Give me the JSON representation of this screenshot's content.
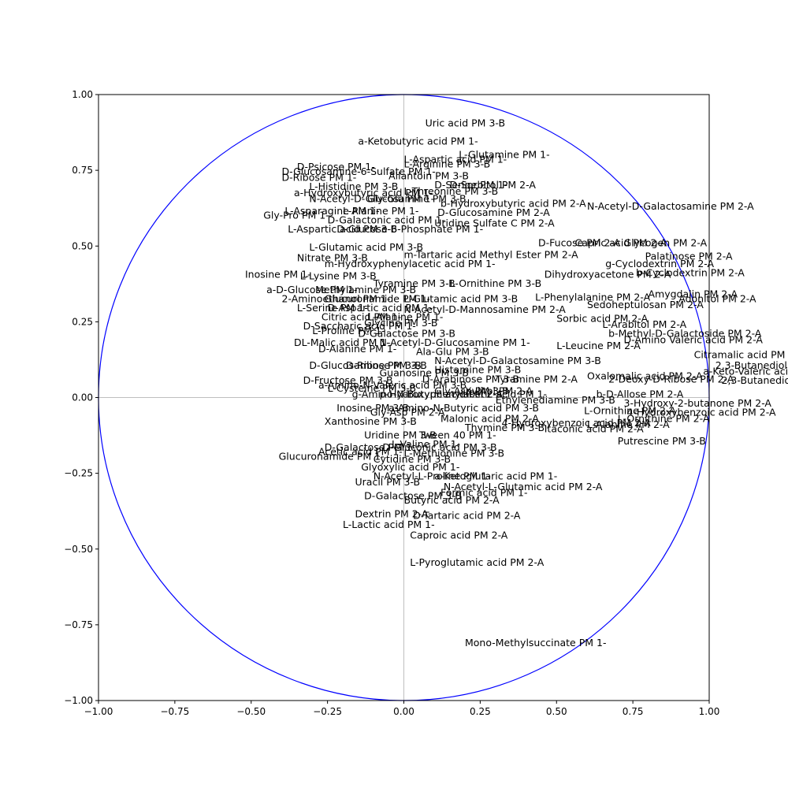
{
  "chart_data": {
    "type": "scatter",
    "title": "",
    "xlabel": "",
    "ylabel": "",
    "xlim": [
      -1.0,
      1.0
    ],
    "ylim": [
      -1.0,
      1.0
    ],
    "grid": false,
    "unit_circle": true,
    "zero_lines": true,
    "colors": {
      "circle": "#0000ff",
      "zero_lines": "#bfbfbf",
      "text": "#000000"
    },
    "x_ticks": [
      {
        "value": -1.0,
        "label": "−1.00"
      },
      {
        "value": -0.75,
        "label": "−0.75"
      },
      {
        "value": -0.5,
        "label": "−0.50"
      },
      {
        "value": -0.25,
        "label": "−0.25"
      },
      {
        "value": 0.0,
        "label": "0.00"
      },
      {
        "value": 0.25,
        "label": "0.25"
      },
      {
        "value": 0.5,
        "label": "0.50"
      },
      {
        "value": 0.75,
        "label": "0.75"
      },
      {
        "value": 1.0,
        "label": "1.00"
      }
    ],
    "y_ticks": [
      {
        "value": -1.0,
        "label": "−1.00"
      },
      {
        "value": -0.75,
        "label": "−0.75"
      },
      {
        "value": -0.5,
        "label": "−0.50"
      },
      {
        "value": -0.25,
        "label": "−0.25"
      },
      {
        "value": 0.0,
        "label": "0.00"
      },
      {
        "value": 0.25,
        "label": "0.25"
      },
      {
        "value": 0.5,
        "label": "0.50"
      },
      {
        "value": 0.75,
        "label": "0.75"
      },
      {
        "value": 1.0,
        "label": "1.00"
      }
    ],
    "points": [
      {
        "label": "Uric acid PM 3-B",
        "x": 0.07,
        "y": 0.895
      },
      {
        "label": "a-Ketobutyric acid PM 1-",
        "x": -0.15,
        "y": 0.835
      },
      {
        "label": "L-Glutamine PM 1-",
        "x": 0.18,
        "y": 0.79
      },
      {
        "label": "L-Aspartic acid PM 1-",
        "x": 0.0,
        "y": 0.775
      },
      {
        "label": "L-Arginine PM 3-B",
        "x": 0.0,
        "y": 0.76
      },
      {
        "label": "D-Psicose PM 1-",
        "x": -0.35,
        "y": 0.75
      },
      {
        "label": "D-Glucosamine-6-Sulfate PM 1-",
        "x": -0.4,
        "y": 0.735
      },
      {
        "label": "Allantoin PM 3-B",
        "x": -0.05,
        "y": 0.72
      },
      {
        "label": "D-Ribose PM 1-",
        "x": -0.4,
        "y": 0.715
      },
      {
        "label": "L-Histidine PM 3-B",
        "x": -0.31,
        "y": 0.685
      },
      {
        "label": "D-Serine PM 1-",
        "x": 0.1,
        "y": 0.69
      },
      {
        "label": "D-Sorbitol PM 2-A",
        "x": 0.15,
        "y": 0.69
      },
      {
        "label": "L-Threonine PM 3-B",
        "x": 0.0,
        "y": 0.67
      },
      {
        "label": "a-Hydroxybutyric acid PM 1-",
        "x": -0.36,
        "y": 0.665
      },
      {
        "label": "N-Acetyl-D-Glucosamine PM 3-B",
        "x": -0.31,
        "y": 0.645
      },
      {
        "label": "Gly-Glu PM 1-",
        "x": -0.12,
        "y": 0.645
      },
      {
        "label": "b-Hydroxybutyric acid PM 2-A",
        "x": 0.12,
        "y": 0.63
      },
      {
        "label": "N-Acetyl-D-Galactosamine PM 2-A",
        "x": 0.6,
        "y": 0.62
      },
      {
        "label": "L-Asparagine PM 1-",
        "x": -0.39,
        "y": 0.605
      },
      {
        "label": "Gly-Pro PM 1-",
        "x": -0.46,
        "y": 0.59
      },
      {
        "label": "L-Alanine PM 1-",
        "x": -0.2,
        "y": 0.605
      },
      {
        "label": "D-Glucosamine PM 2-A",
        "x": 0.11,
        "y": 0.6
      },
      {
        "label": "D-Galactonic acid PM 1-",
        "x": -0.25,
        "y": 0.575
      },
      {
        "label": "Uridine Sulfate C PM 2-A",
        "x": 0.1,
        "y": 0.565
      },
      {
        "label": "L-Aspartic acid PM 3-B",
        "x": -0.38,
        "y": 0.545
      },
      {
        "label": "D-Glucose-6-Phosphate PM 1-",
        "x": -0.22,
        "y": 0.545
      },
      {
        "label": "D-Fucose PM 2-A",
        "x": 0.44,
        "y": 0.5
      },
      {
        "label": "Capric acid PM 2-A",
        "x": 0.56,
        "y": 0.5
      },
      {
        "label": "Glycogen PM 2-A",
        "x": 0.72,
        "y": 0.5
      },
      {
        "label": "L-Glutamic acid PM 3-B",
        "x": -0.31,
        "y": 0.485
      },
      {
        "label": "m-Tartaric acid Methyl Ester PM 2-A",
        "x": 0.0,
        "y": 0.46
      },
      {
        "label": "Nitrate PM 3-B",
        "x": -0.35,
        "y": 0.45
      },
      {
        "label": "m-Hydroxyphenylacetic acid PM 1-",
        "x": -0.26,
        "y": 0.43
      },
      {
        "label": "Palatinose PM 2-A",
        "x": 0.79,
        "y": 0.455
      },
      {
        "label": "g-Cyclodextrin PM 2-A",
        "x": 0.66,
        "y": 0.43
      },
      {
        "label": "Inosine PM 1-",
        "x": -0.52,
        "y": 0.395
      },
      {
        "label": "L-Lysine PM 3-B",
        "x": -0.34,
        "y": 0.39
      },
      {
        "label": "Dihydroxyacetone PM 2-A",
        "x": 0.46,
        "y": 0.395
      },
      {
        "label": "b-Cyclodextrin PM 2-A",
        "x": 0.76,
        "y": 0.4
      },
      {
        "label": "Tyramine PM 3-B",
        "x": -0.1,
        "y": 0.365
      },
      {
        "label": "L-Ornithine PM 3-B",
        "x": 0.15,
        "y": 0.365
      },
      {
        "label": "a-D-Glucose PM 1-",
        "x": -0.45,
        "y": 0.345
      },
      {
        "label": "Methylamine PM 3-B",
        "x": -0.29,
        "y": 0.345
      },
      {
        "label": "2-Aminoethanol PM 1-",
        "x": -0.4,
        "y": 0.315
      },
      {
        "label": "Glucuronamide PM 1-",
        "x": -0.26,
        "y": 0.315
      },
      {
        "label": "L-Glutamic acid PM 3-B",
        "x": 0.0,
        "y": 0.315
      },
      {
        "label": "L-Phenylalanine PM 2-A",
        "x": 0.43,
        "y": 0.32
      },
      {
        "label": "Amygdalin PM 2-A",
        "x": 0.8,
        "y": 0.33
      },
      {
        "label": "Adonitol PM 2-A",
        "x": 0.9,
        "y": 0.315
      },
      {
        "label": "L-Serine PM 1-",
        "x": -0.35,
        "y": 0.285
      },
      {
        "label": "D-Aspartic acid PM 1-",
        "x": -0.25,
        "y": 0.285
      },
      {
        "label": "N-Acetyl-D-Mannosamine PM 2-A",
        "x": 0.0,
        "y": 0.28
      },
      {
        "label": "Sedoheptulosan PM 2-A",
        "x": 0.6,
        "y": 0.295
      },
      {
        "label": "Citric acid PM 1-",
        "x": -0.27,
        "y": 0.255
      },
      {
        "label": "L-Alanine PM 1-",
        "x": -0.12,
        "y": 0.255
      },
      {
        "label": "Sorbic acid PM 2-A",
        "x": 0.5,
        "y": 0.25
      },
      {
        "label": "L-Arabitol PM 2-A",
        "x": 0.65,
        "y": 0.23
      },
      {
        "label": "D-Saccharic acid PM 1-",
        "x": -0.33,
        "y": 0.225
      },
      {
        "label": "Glycine PM 3-B",
        "x": -0.13,
        "y": 0.235
      },
      {
        "label": "L-Proline PM 1-",
        "x": -0.3,
        "y": 0.21
      },
      {
        "label": "D-Galactose PM 3-B",
        "x": -0.15,
        "y": 0.2
      },
      {
        "label": "b-Methyl-D-Galactoside PM 2-A",
        "x": 0.67,
        "y": 0.2
      },
      {
        "label": "D-Amino Valeric acid PM 2-A",
        "x": 0.72,
        "y": 0.18
      },
      {
        "label": "DL-Malic acid PM 1-",
        "x": -0.36,
        "y": 0.17
      },
      {
        "label": "N-Acetyl-D-Glucosamine PM 1-",
        "x": -0.08,
        "y": 0.17
      },
      {
        "label": "L-Leucine PM 2-A",
        "x": 0.5,
        "y": 0.16
      },
      {
        "label": "D-Alanine PM 1-",
        "x": -0.28,
        "y": 0.15
      },
      {
        "label": "Ala-Glu PM 3-B",
        "x": 0.04,
        "y": 0.14
      },
      {
        "label": "Citramalic acid PM 2-A",
        "x": 0.95,
        "y": 0.13
      },
      {
        "label": "N-Acetyl-D-Galactosamine PM 3-B",
        "x": 0.1,
        "y": 0.11
      },
      {
        "label": "D-Glucosamine PM 3-B",
        "x": -0.31,
        "y": 0.095
      },
      {
        "label": "D-Ribose PM 3-B",
        "x": -0.19,
        "y": 0.095
      },
      {
        "label": "2,3-Butanediol PM 2-A",
        "x": 1.02,
        "y": 0.095
      },
      {
        "label": "Guanosine PM 3-B",
        "x": -0.08,
        "y": 0.07
      },
      {
        "label": "Histamine PM 3-B",
        "x": 0.1,
        "y": 0.08
      },
      {
        "label": "a-Keto-Valeric acid PM 2-A",
        "x": 0.98,
        "y": 0.075
      },
      {
        "label": "D-Arabinose PM 3-B",
        "x": 0.06,
        "y": 0.05
      },
      {
        "label": "Tyramine PM 2-A",
        "x": 0.3,
        "y": 0.05
      },
      {
        "label": "Oxalomalic acid PM 2-A",
        "x": 0.6,
        "y": 0.06
      },
      {
        "label": "2-Deoxy-D-Ribose PM 2-A",
        "x": 0.67,
        "y": 0.05
      },
      {
        "label": "2,3-Butanedione PM 2-A",
        "x": 1.04,
        "y": 0.045
      },
      {
        "label": "D-Fructose PM 3-B",
        "x": -0.33,
        "y": 0.045
      },
      {
        "label": "a-Amino-N-Valeric acid PM 3-B",
        "x": -0.28,
        "y": 0.03
      },
      {
        "label": "L-Cysteine PM 3-B",
        "x": -0.25,
        "y": 0.02
      },
      {
        "label": "Gly-Asp PM 3-B",
        "x": 0.1,
        "y": 0.01
      },
      {
        "label": "Xylitol PM 2-A",
        "x": 0.2,
        "y": 0.01
      },
      {
        "label": "Ethylenediamine PM 3-B",
        "x": 0.3,
        "y": -0.02
      },
      {
        "label": "p-Hydroxyphenylacetic acid PM 1-",
        "x": -0.08,
        "y": 0.0
      },
      {
        "label": "g-Amino-N-Butyric acid PM 2-A",
        "x": -0.17,
        "y": 0.0
      },
      {
        "label": "b-D-Allose PM 2-A",
        "x": 0.63,
        "y": 0.0
      },
      {
        "label": "3-Hydroxy-2-butanone PM 2-A",
        "x": 0.72,
        "y": -0.03
      },
      {
        "label": "Inosine PM 3-B",
        "x": -0.22,
        "y": -0.045
      },
      {
        "label": "a-Amino-N-Butyric acid PM 3-B",
        "x": -0.05,
        "y": -0.045
      },
      {
        "label": "L-Ornithine PM 2-A",
        "x": 0.59,
        "y": -0.055
      },
      {
        "label": "4-Hydroxybenzoic acid PM 2-A",
        "x": 0.73,
        "y": -0.06
      },
      {
        "label": "Gly-Asp PM 2-A",
        "x": -0.11,
        "y": -0.06
      },
      {
        "label": "Malonic acid PM 2-A",
        "x": 0.12,
        "y": -0.08
      },
      {
        "label": "L-Ornithine PM 2-A",
        "x": 0.7,
        "y": -0.08
      },
      {
        "label": "Xanthosine PM 3-B",
        "x": -0.26,
        "y": -0.09
      },
      {
        "label": "4-Hydroxybenzoic acid PM 2-A",
        "x": 0.32,
        "y": -0.095
      },
      {
        "label": "L-Alanine PM 2-A",
        "x": 0.6,
        "y": -0.1
      },
      {
        "label": "Thymine PM 3-B",
        "x": 0.2,
        "y": -0.11
      },
      {
        "label": "Itaconic acid PM 2-A",
        "x": 0.46,
        "y": -0.115
      },
      {
        "label": "Uridine PM 3-B",
        "x": -0.13,
        "y": -0.135
      },
      {
        "label": "Tween 40 PM 1-",
        "x": 0.05,
        "y": -0.135
      },
      {
        "label": "Putrescine PM 3-B",
        "x": 0.7,
        "y": -0.155
      },
      {
        "label": "L-Valine PM 1-",
        "x": -0.04,
        "y": -0.165
      },
      {
        "label": "D-Galactose PM 1-",
        "x": -0.26,
        "y": -0.175
      },
      {
        "label": "D-Gluconic acid PM 3-B",
        "x": -0.07,
        "y": -0.175
      },
      {
        "label": "Acetic acid PM 1-",
        "x": -0.28,
        "y": -0.19
      },
      {
        "label": "L-Methionine PM 3-B",
        "x": 0.0,
        "y": -0.195
      },
      {
        "label": "Glucuronamide PM 1-",
        "x": -0.41,
        "y": -0.205
      },
      {
        "label": "Cytidine PM 3-B",
        "x": -0.1,
        "y": -0.215
      },
      {
        "label": "Glyoxylic acid PM 1-",
        "x": -0.14,
        "y": -0.24
      },
      {
        "label": "N-Acetyl-L-Proline PM 1-",
        "x": -0.1,
        "y": -0.27
      },
      {
        "label": "a-Ketoglutaric acid PM 1-",
        "x": 0.1,
        "y": -0.27
      },
      {
        "label": "Uracil PM 3-B",
        "x": -0.16,
        "y": -0.29
      },
      {
        "label": "N-Acetyl-L-Glutamic acid PM 2-A",
        "x": 0.13,
        "y": -0.305
      },
      {
        "label": "D-Galactose PM 3-B",
        "x": -0.13,
        "y": -0.335
      },
      {
        "label": "Formic acid PM 1-",
        "x": 0.12,
        "y": -0.325
      },
      {
        "label": "Butyric acid PM 2-A",
        "x": 0.0,
        "y": -0.35
      },
      {
        "label": "Dextrin PM 2-A",
        "x": -0.16,
        "y": -0.395
      },
      {
        "label": "D-Tartaric acid PM 2-A",
        "x": 0.03,
        "y": -0.4
      },
      {
        "label": "L-Lactic acid PM 1-",
        "x": -0.2,
        "y": -0.43
      },
      {
        "label": "Caproic acid PM 2-A",
        "x": 0.02,
        "y": -0.465
      },
      {
        "label": "L-Pyroglutamic acid PM 2-A",
        "x": 0.02,
        "y": -0.555
      },
      {
        "label": "Mono-Methylsuccinate PM 1-",
        "x": 0.2,
        "y": -0.82
      }
    ]
  }
}
